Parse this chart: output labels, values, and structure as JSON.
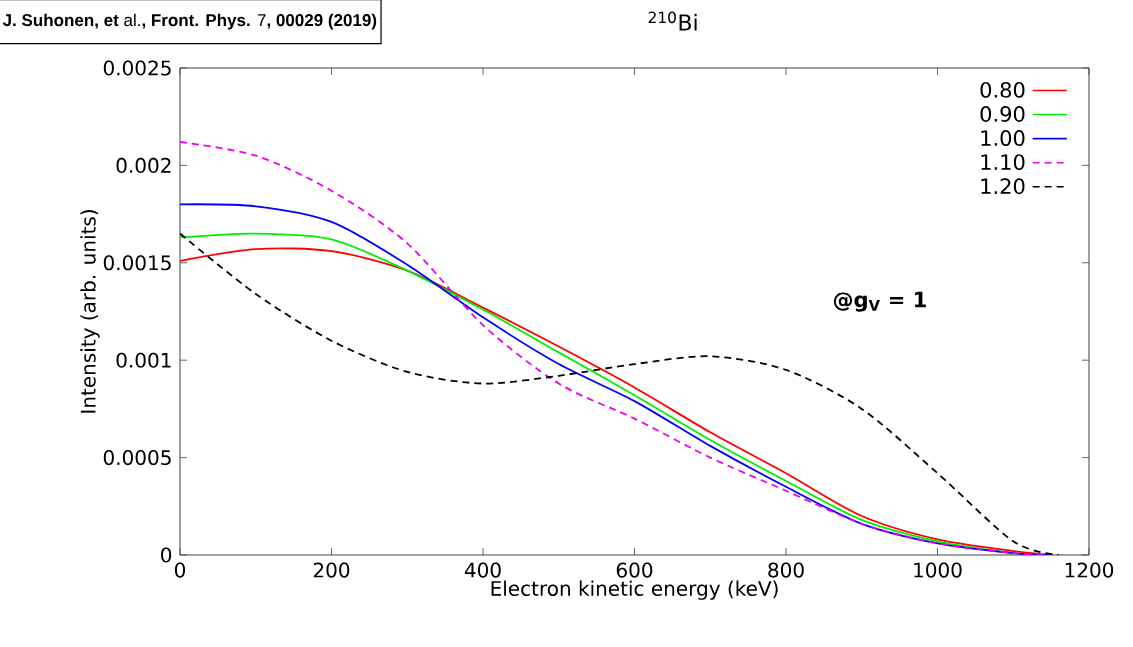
{
  "chart_data": {
    "type": "line",
    "title": "$^{210}$Bi",
    "xlabel": "Electron kinetic energy (keV)",
    "ylabel": "Intensity (arb. units)",
    "annotations": [
      "**J. Suhonen, et** al.**, Front. Phys.** 7**, 00029 (2019)**",
      "**@g$_{V}$ = 1**"
    ],
    "x": [
      0,
      100,
      200,
      300,
      400,
      500,
      600,
      700,
      800,
      900,
      1000,
      1100,
      1150
    ],
    "series": [
      {
        "name": "0.80",
        "color": "#ff0000",
        "line_style": "solid",
        "values": [
          0.00151,
          0.00157,
          0.00156,
          0.00146,
          0.00127,
          0.00107,
          0.00086,
          0.00063,
          0.00042,
          0.0002,
          8e-05,
          2e-05,
          0
        ]
      },
      {
        "name": "0.90",
        "color": "#00ee00",
        "line_style": "solid",
        "values": [
          0.00163,
          0.00165,
          0.00162,
          0.00146,
          0.00126,
          0.00104,
          0.00082,
          0.00059,
          0.00038,
          0.00018,
          7e-05,
          1e-05,
          0
        ]
      },
      {
        "name": "1.00",
        "color": "#0000ff",
        "line_style": "solid",
        "values": [
          0.0018,
          0.00179,
          0.00171,
          0.00149,
          0.00122,
          0.00098,
          0.00079,
          0.00056,
          0.00035,
          0.00016,
          6e-05,
          1e-05,
          0
        ]
      },
      {
        "name": "1.10",
        "color": "#ee00ee",
        "line_style": "dashed",
        "values": [
          0.00212,
          0.00205,
          0.00187,
          0.0016,
          0.00118,
          0.00088,
          0.0007,
          0.0005,
          0.00033,
          0.00016,
          6e-05,
          1e-05,
          0
        ]
      },
      {
        "name": "1.20",
        "color": "#000000",
        "line_style": "dashed",
        "x": [
          0,
          100,
          200,
          300,
          400,
          500,
          600,
          700,
          800,
          900,
          1000,
          1100,
          1160
        ],
        "values": [
          0.00165,
          0.00134,
          0.0011,
          0.00094,
          0.00088,
          0.00092,
          0.00098,
          0.00102,
          0.00095,
          0.00075,
          0.00042,
          7e-05,
          0
        ]
      }
    ],
    "xlim": [
      0,
      1200
    ],
    "xticks": [
      0,
      200,
      400,
      600,
      800,
      1000,
      1200
    ],
    "ylim": [
      0,
      0.0025
    ],
    "yticks": [
      0,
      0.0005,
      0.001,
      0.0015,
      0.002,
      0.0025
    ],
    "legend": "top right",
    "grid": false,
    "marker": "none"
  }
}
